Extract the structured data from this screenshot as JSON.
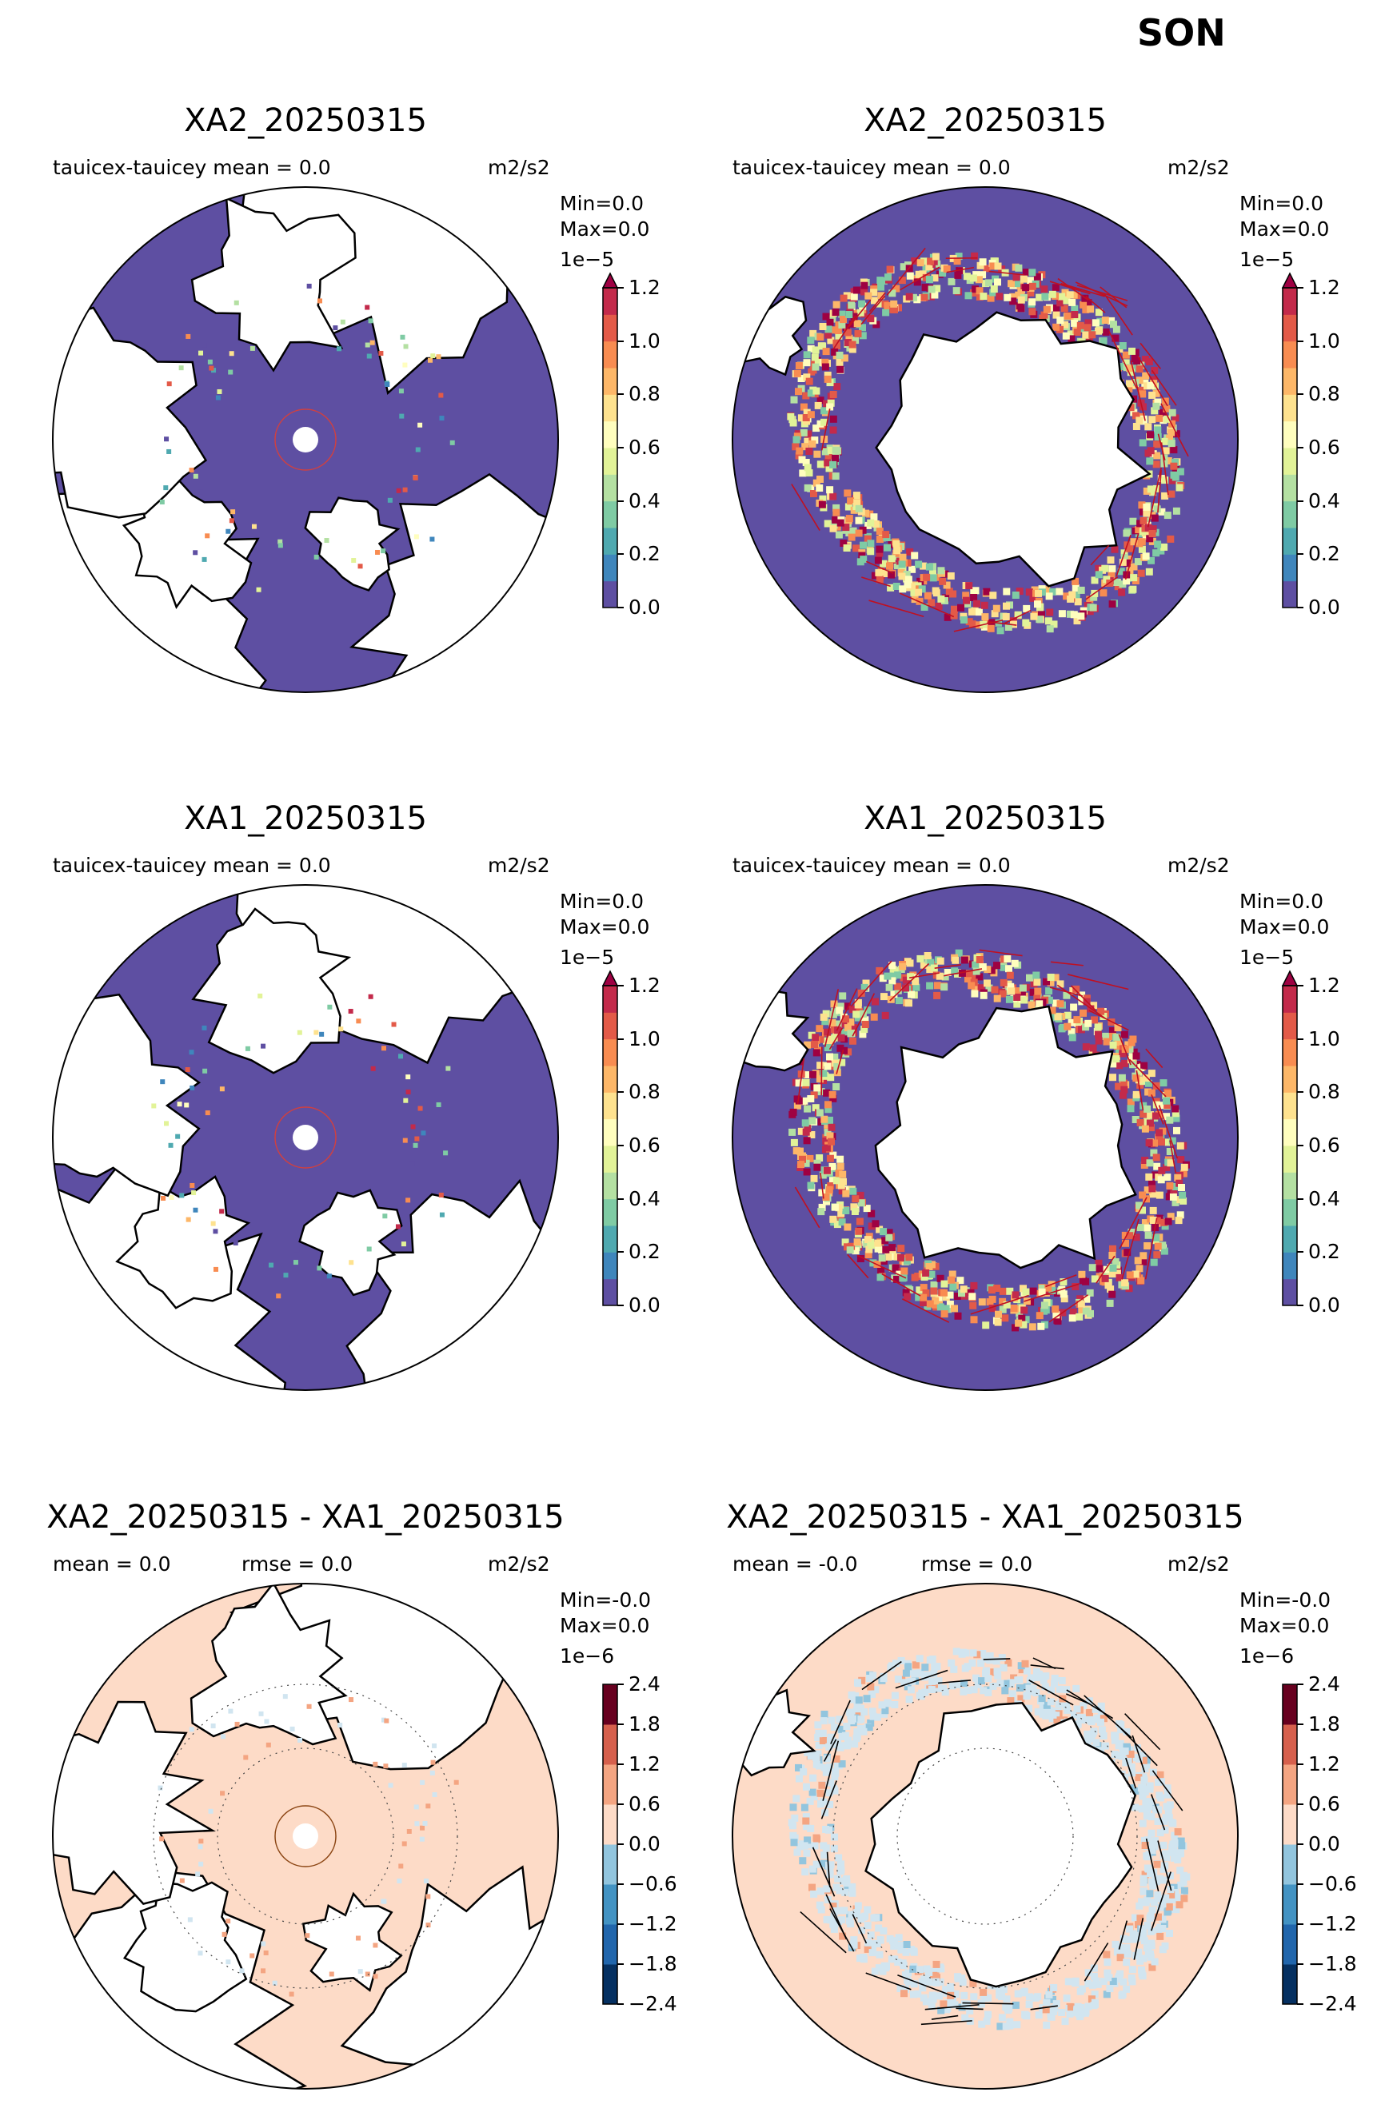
{
  "season": "SON",
  "units": "m2/s2",
  "colors": {
    "background_ocean": "#5e4fa2",
    "land": "#ffffff",
    "seq_palette": [
      "#5e4fa2",
      "#3f86bc",
      "#4fa9b0",
      "#7fcba4",
      "#b4e0a2",
      "#e2f398",
      "#fffebe",
      "#fee28f",
      "#fdb768",
      "#f88c51",
      "#e35a48",
      "#c32a4b",
      "#9e0142"
    ],
    "div_palette": [
      "#053061",
      "#2166ac",
      "#4393c3",
      "#92c5de",
      "#d1e5f0",
      "#fddbc7",
      "#f4a582",
      "#d6604d",
      "#b2182b",
      "#67001f"
    ]
  },
  "panels": [
    {
      "title": "XA2_20250315",
      "stat": "tauicex-tauicey  mean = 0.0",
      "units": "m2/s2",
      "minmax_min": "Min=0.0",
      "minmax_max": "Max=0.0",
      "cbar_exp": "1e−5",
      "ticks": [
        "1.2",
        "1.0",
        "0.8",
        "0.6",
        "0.4",
        "0.2",
        "0.0"
      ],
      "hemisphere": "north",
      "cbar": "seq"
    },
    {
      "title": "XA2_20250315",
      "stat": "tauicex-tauicey  mean = 0.0",
      "units": "m2/s2",
      "minmax_min": "Min=0.0",
      "minmax_max": "Max=0.0",
      "cbar_exp": "1e−5",
      "ticks": [
        "1.2",
        "1.0",
        "0.8",
        "0.6",
        "0.4",
        "0.2",
        "0.0"
      ],
      "hemisphere": "south",
      "cbar": "seq"
    },
    {
      "title": "XA1_20250315",
      "stat": "tauicex-tauicey  mean = 0.0",
      "units": "m2/s2",
      "minmax_min": "Min=0.0",
      "minmax_max": "Max=0.0",
      "cbar_exp": "1e−5",
      "ticks": [
        "1.2",
        "1.0",
        "0.8",
        "0.6",
        "0.4",
        "0.2",
        "0.0"
      ],
      "hemisphere": "north",
      "cbar": "seq"
    },
    {
      "title": "XA1_20250315",
      "stat": "tauicex-tauicey  mean = 0.0",
      "units": "m2/s2",
      "minmax_min": "Min=0.0",
      "minmax_max": "Max=0.0",
      "cbar_exp": "1e−5",
      "ticks": [
        "1.2",
        "1.0",
        "0.8",
        "0.6",
        "0.4",
        "0.2",
        "0.0"
      ],
      "hemisphere": "south",
      "cbar": "seq"
    },
    {
      "title": "XA2_20250315 - XA1_20250315",
      "stat": "mean = 0.0",
      "stat2": "rmse = 0.0",
      "units": "m2/s2",
      "minmax_min": "Min=-0.0",
      "minmax_max": "Max=0.0",
      "cbar_exp": "1e−6",
      "ticks": [
        "2.4",
        "1.8",
        "1.2",
        "0.6",
        "0.0",
        "−0.6",
        "−1.2",
        "−1.8",
        "−2.4"
      ],
      "hemisphere": "north",
      "cbar": "div"
    },
    {
      "title": "XA2_20250315 - XA1_20250315",
      "stat": "mean = -0.0",
      "stat2": "rmse = 0.0",
      "units": "m2/s2",
      "minmax_min": "Min=-0.0",
      "minmax_max": "Max=0.0",
      "cbar_exp": "1e−6",
      "ticks": [
        "2.4",
        "1.8",
        "1.2",
        "0.6",
        "0.0",
        "−0.6",
        "−1.2",
        "−1.8",
        "−2.4"
      ],
      "hemisphere": "south",
      "cbar": "div"
    }
  ],
  "chart_data": [
    {
      "type": "heatmap",
      "title": "XA2_20250315",
      "variable": "tauicex-tauicey",
      "mean": 0.0,
      "min": 0.0,
      "max": 0.0,
      "units": "m2/s2",
      "colorbar_range": [
        0.0,
        1.2
      ],
      "colorbar_scale": "1e-5",
      "colorbar_ticks": [
        0.0,
        0.2,
        0.4,
        0.6,
        0.8,
        1.0,
        1.2
      ]
    },
    {
      "type": "heatmap",
      "title": "XA2_20250315",
      "variable": "tauicex-tauicey",
      "mean": 0.0,
      "min": 0.0,
      "max": 0.0,
      "units": "m2/s2",
      "colorbar_range": [
        0.0,
        1.2
      ],
      "colorbar_scale": "1e-5",
      "colorbar_ticks": [
        0.0,
        0.2,
        0.4,
        0.6,
        0.8,
        1.0,
        1.2
      ]
    },
    {
      "type": "heatmap",
      "title": "XA1_20250315",
      "variable": "tauicex-tauicey",
      "mean": 0.0,
      "min": 0.0,
      "max": 0.0,
      "units": "m2/s2",
      "colorbar_range": [
        0.0,
        1.2
      ],
      "colorbar_scale": "1e-5",
      "colorbar_ticks": [
        0.0,
        0.2,
        0.4,
        0.6,
        0.8,
        1.0,
        1.2
      ]
    },
    {
      "type": "heatmap",
      "title": "XA1_20250315",
      "variable": "tauicex-tauicey",
      "mean": 0.0,
      "min": 0.0,
      "max": 0.0,
      "units": "m2/s2",
      "colorbar_range": [
        0.0,
        1.2
      ],
      "colorbar_scale": "1e-5",
      "colorbar_ticks": [
        0.0,
        0.2,
        0.4,
        0.6,
        0.8,
        1.0,
        1.2
      ]
    },
    {
      "type": "heatmap",
      "title": "XA2_20250315 - XA1_20250315",
      "mean": 0.0,
      "rmse": 0.0,
      "min": -0.0,
      "max": 0.0,
      "units": "m2/s2",
      "colorbar_range": [
        -2.4,
        2.4
      ],
      "colorbar_scale": "1e-6",
      "colorbar_ticks": [
        -2.4,
        -1.8,
        -1.2,
        -0.6,
        0.0,
        0.6,
        1.2,
        1.8,
        2.4
      ]
    },
    {
      "type": "heatmap",
      "title": "XA2_20250315 - XA1_20250315",
      "mean": -0.0,
      "rmse": 0.0,
      "min": -0.0,
      "max": 0.0,
      "units": "m2/s2",
      "colorbar_range": [
        -2.4,
        2.4
      ],
      "colorbar_scale": "1e-6",
      "colorbar_ticks": [
        -2.4,
        -1.8,
        -1.2,
        -0.6,
        0.0,
        0.6,
        1.2,
        1.8,
        2.4
      ]
    }
  ]
}
